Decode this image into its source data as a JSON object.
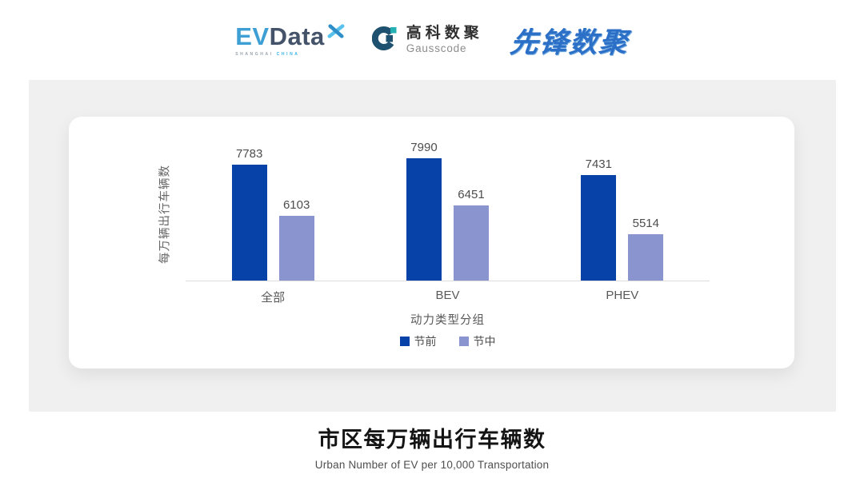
{
  "header": {
    "evdata": {
      "ev": "EV",
      "data": "Data",
      "sub_left": "SHANGHAI",
      "sub_right": "CHINA"
    },
    "gausscode": {
      "cn": "高科数聚",
      "en": "Gausscode"
    },
    "xianfeng": {
      "text": "先锋数聚"
    }
  },
  "chart_data": {
    "type": "bar",
    "categories": [
      "全部",
      "BEV",
      "PHEV"
    ],
    "series": [
      {
        "name": "节前",
        "color": "#0742a8",
        "values": [
          7783,
          7990,
          7431
        ]
      },
      {
        "name": "节中",
        "color": "#8a95cf",
        "values": [
          6103,
          6451,
          5514
        ]
      }
    ],
    "ylabel": "每万辆出行车辆数",
    "xlabel": "动力类型分组",
    "ylim": [
      4000,
      8400
    ],
    "grid": false,
    "legend_position": "bottom",
    "title": "市区每万辆出行车辆数"
  },
  "footer": {
    "title": "市区每万辆出行车辆数",
    "subtitle": "Urban Number of EV per 10,000 Transportation"
  },
  "colors": {
    "series_pre_holiday": "#0742a8",
    "series_mid_holiday": "#8a95cf",
    "panel_background": "#f0f0f0",
    "axis_line": "#dcdcdc"
  }
}
